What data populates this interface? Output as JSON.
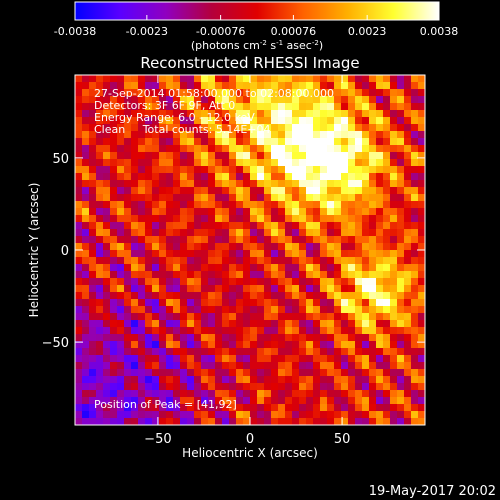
{
  "chart_data": {
    "type": "heatmap",
    "title": "Reconstructed RHESSI Image",
    "xlabel": "Heliocentric X (arcsec)",
    "ylabel": "Heliocentric Y (arcsec)",
    "xlim": [
      -95,
      95
    ],
    "ylim": [
      -95,
      95
    ],
    "x_ticks": [
      -50,
      0,
      50
    ],
    "y_ticks": [
      -50,
      0,
      50
    ],
    "colorbar": {
      "min": -0.0038,
      "max": 0.0038,
      "ticks": [
        -0.0038,
        -0.0023,
        -0.00076,
        0.00076,
        0.0023,
        0.0038
      ],
      "tick_labels": [
        "-0.0038",
        "-0.0023",
        "-0.00076",
        "0.00076",
        "0.0023",
        "0.0038"
      ],
      "unit_text": "(photons cm",
      "unit_sup1": "-2",
      "unit_mid": " s",
      "unit_sup2": "-1",
      "unit_mid2": " asec",
      "unit_sup3": "-2",
      "unit_end": ")",
      "colormap": [
        "#0000ff",
        "#5a00ff",
        "#9000c0",
        "#b4003c",
        "#e00000",
        "#ff6000",
        "#ffb000",
        "#ffff30",
        "#ffffff"
      ]
    },
    "annotations": [
      "27-Sep-2014 01:58:00.000 to 02:08:00.000",
      "Detectors: 3F 6F 9F, Att 0",
      "Energy Range: 6.0 - 12.0 keV",
      "Clean     Total counts: 5.14E+04"
    ],
    "peak_label": "Position of Peak = [41,92]",
    "peak": [
      41,
      92
    ],
    "sources": [
      {
        "x": 42,
        "y": 48,
        "peak": 0.0038
      },
      {
        "x": 68,
        "y": -22,
        "peak": 0.003
      },
      {
        "x": 8,
        "y": 75,
        "peak": 0.0022
      }
    ],
    "grid": false
  },
  "footer": {
    "date": "19-May-2017 20:02"
  }
}
